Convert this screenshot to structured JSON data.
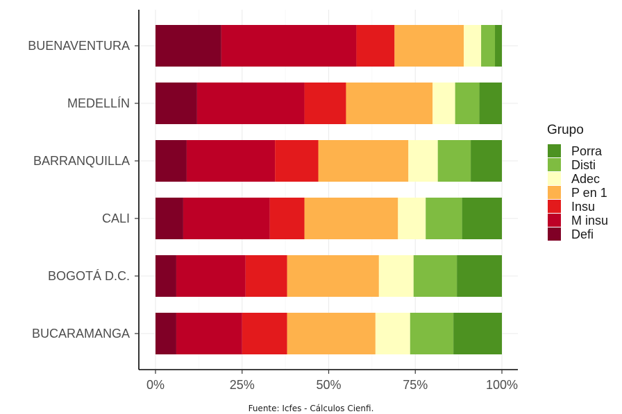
{
  "chart_data": {
    "type": "bar",
    "orientation": "horizontal",
    "stacked": "percent",
    "categories": [
      "BUENAVENTURA",
      "MEDELLÍN",
      "BARRANQUILLA",
      "CALI",
      "BOGOTÁ D.C.",
      "BUCARAMANGA"
    ],
    "series": [
      {
        "name": "Defi",
        "color": "#800026",
        "values": [
          19,
          12,
          9,
          8,
          6,
          6
        ]
      },
      {
        "name": "M insu",
        "color": "#BD0026",
        "values": [
          39,
          31,
          25.5,
          25,
          20,
          19
        ]
      },
      {
        "name": "Insu",
        "color": "#E31A1C",
        "values": [
          11,
          12,
          12.5,
          10,
          12,
          13
        ]
      },
      {
        "name": "P en 1",
        "color": "#FEB24C",
        "values": [
          20,
          25,
          26,
          27,
          26.5,
          25.5
        ]
      },
      {
        "name": "Adec",
        "color": "#FFFFBF",
        "values": [
          5,
          6.5,
          8.5,
          8,
          10,
          10
        ]
      },
      {
        "name": "Disti",
        "color": "#7FBC41",
        "values": [
          4,
          7,
          9.5,
          10.5,
          12.5,
          12.5
        ]
      },
      {
        "name": "Porra",
        "color": "#4D9221",
        "values": [
          2,
          6.5,
          9,
          11.5,
          13,
          14
        ]
      }
    ],
    "xlim": [
      0,
      100
    ],
    "x_ticks": [
      "0%",
      "25%",
      "50%",
      "75%",
      "100%"
    ],
    "grid": true,
    "legend": {
      "title": "Grupo",
      "position": "right",
      "entries": [
        "Porra",
        "Disti",
        "Adec",
        "P en 1",
        "Insu",
        "M insu",
        "Defi"
      ]
    },
    "caption": "Fuente: Icfes - Cálculos Cienfi."
  }
}
